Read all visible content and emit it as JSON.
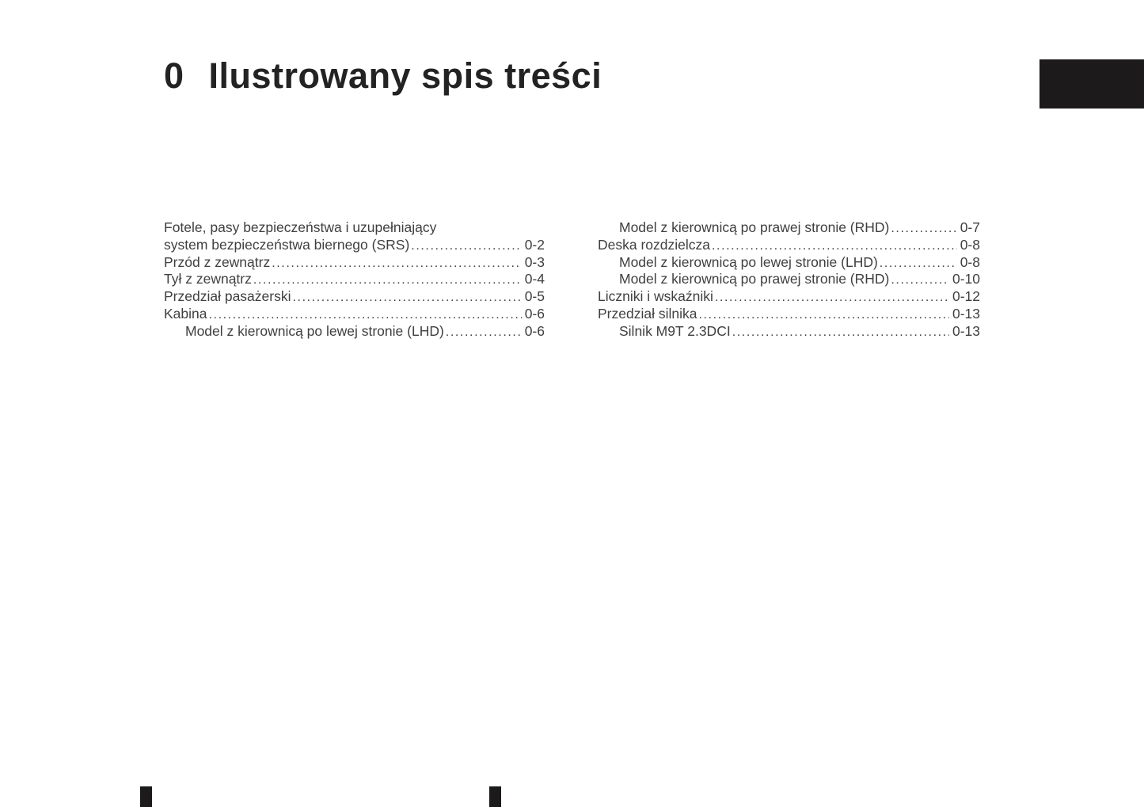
{
  "chapter": {
    "number": "0",
    "title": "Ilustrowany spis treści"
  },
  "colors": {
    "body_text": "#3f3f3f",
    "title_text": "#232323",
    "chapter_tab": "#1c1a1b"
  },
  "toc": {
    "left": [
      {
        "label": "Fotele, pasy bezpieczeństwa i uzupełniający",
        "page": "",
        "indent": 0
      },
      {
        "label": "system bezpieczeństwa biernego (SRS)",
        "page": "0-2",
        "indent": 0
      },
      {
        "label": "Przód z zewnątrz",
        "page": "0-3",
        "indent": 0
      },
      {
        "label": "Tył z zewnątrz",
        "page": "0-4",
        "indent": 0
      },
      {
        "label": "Przedział pasażerski",
        "page": "0-5",
        "indent": 0
      },
      {
        "label": "Kabina",
        "page": "0-6",
        "indent": 0
      },
      {
        "label": "Model z kierownicą po lewej stronie (LHD)",
        "page": "0-6",
        "indent": 1
      }
    ],
    "right": [
      {
        "label": "Model z kierownicą po prawej stronie (RHD)",
        "page": "0-7",
        "indent": 1
      },
      {
        "label": "Deska rozdzielcza",
        "page": "0-8",
        "indent": 0
      },
      {
        "label": "Model z kierownicą po lewej stronie (LHD)",
        "page": "0-8",
        "indent": 1
      },
      {
        "label": "Model z kierownicą po prawej stronie (RHD)",
        "page": "0-10",
        "indent": 1
      },
      {
        "label": "Liczniki i wskaźniki",
        "page": "0-12",
        "indent": 0
      },
      {
        "label": "Przedział silnika",
        "page": "0-13",
        "indent": 0
      },
      {
        "label": "Silnik M9T 2.3DCI",
        "page": "0-13",
        "indent": 1
      }
    ]
  }
}
